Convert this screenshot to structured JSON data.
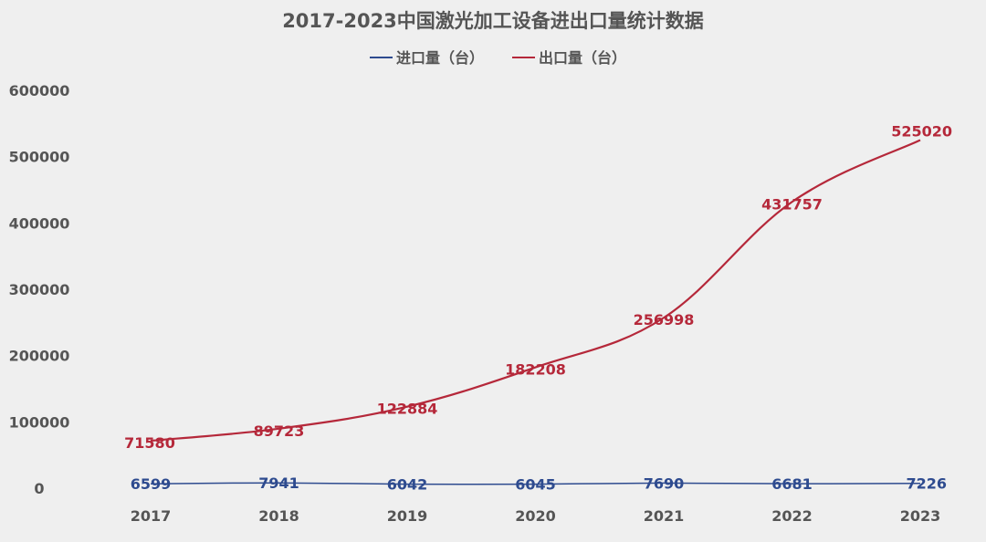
{
  "chart_data": {
    "type": "line",
    "title": "2017-2023中国激光加工设备进出口量统计数据",
    "categories": [
      "2017",
      "2018",
      "2019",
      "2020",
      "2021",
      "2022",
      "2023"
    ],
    "yticks": [
      "600000",
      "500000",
      "400000",
      "300000",
      "200000",
      "100000",
      "0"
    ],
    "ylim": [
      0,
      600000
    ],
    "grid": false,
    "legend_position": "top",
    "series": [
      {
        "name": "进口量（台）",
        "color": "#2e4b8f",
        "values": [
          6599,
          7941,
          6042,
          6045,
          7690,
          6681,
          7226
        ],
        "labels": [
          "6599",
          "7941",
          "6042",
          "6045",
          "7690",
          "6681",
          "7226"
        ]
      },
      {
        "name": "出口量（台）",
        "color": "#b5283a",
        "values": [
          71580,
          89723,
          122884,
          182208,
          256998,
          431757,
          525020
        ],
        "labels": [
          "71580",
          "89723",
          "122884",
          "182208",
          "256998",
          "431757",
          "525020"
        ]
      }
    ]
  }
}
